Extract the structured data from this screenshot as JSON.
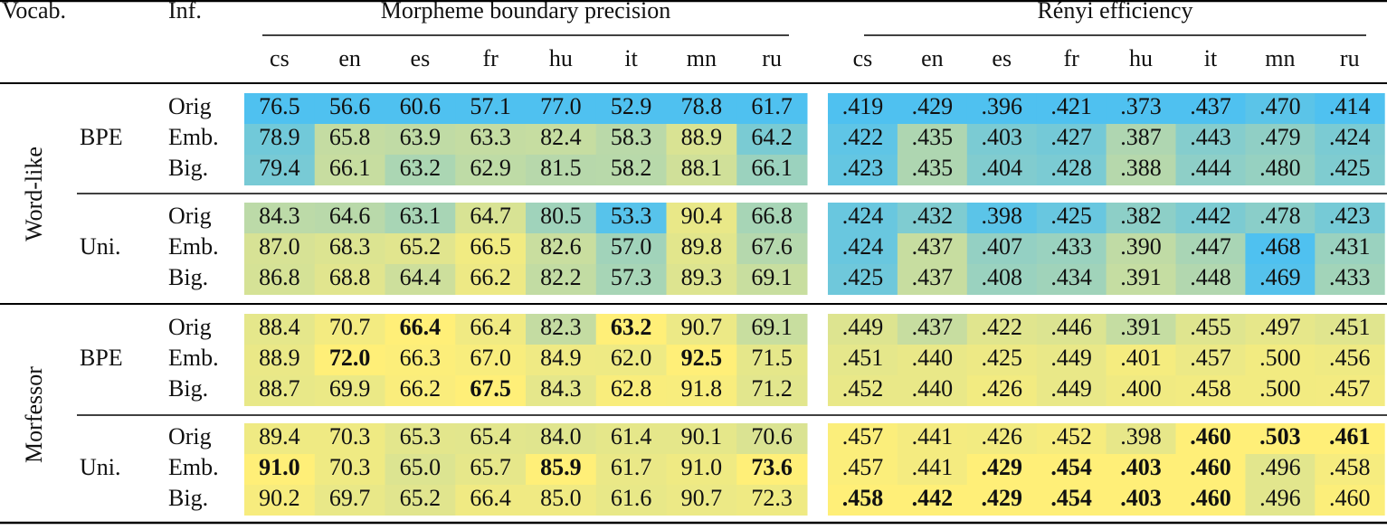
{
  "header": {
    "vocab": "Vocab.",
    "inf": "Inf.",
    "groups": [
      "Morpheme boundary precision",
      "Rényi efficiency"
    ],
    "languages": [
      "cs",
      "en",
      "es",
      "fr",
      "hu",
      "it",
      "mn",
      "ru"
    ]
  },
  "sections": [
    {
      "name": "Word-like",
      "groups": [
        {
          "vocab": "BPE",
          "rows": [
            {
              "inf": "Orig",
              "mbp": [
                "76.5",
                "56.6",
                "60.6",
                "57.1",
                "77.0",
                "52.9",
                "78.8",
                "61.7"
              ],
              "renyi": [
                ".419",
                ".429",
                ".396",
                ".421",
                ".373",
                ".437",
                ".470",
                ".414"
              ]
            },
            {
              "inf": "Emb.",
              "mbp": [
                "78.9",
                "65.8",
                "63.9",
                "63.3",
                "82.4",
                "58.3",
                "88.9",
                "64.2"
              ],
              "renyi": [
                ".422",
                ".435",
                ".403",
                ".427",
                ".387",
                ".443",
                ".479",
                ".424"
              ]
            },
            {
              "inf": "Big.",
              "mbp": [
                "79.4",
                "66.1",
                "63.2",
                "62.9",
                "81.5",
                "58.2",
                "88.1",
                "66.1"
              ],
              "renyi": [
                ".423",
                ".435",
                ".404",
                ".428",
                ".388",
                ".444",
                ".480",
                ".425"
              ]
            }
          ]
        },
        {
          "vocab": "Uni.",
          "rows": [
            {
              "inf": "Orig",
              "mbp": [
                "84.3",
                "64.6",
                "63.1",
                "64.7",
                "80.5",
                "53.3",
                "90.4",
                "66.8"
              ],
              "renyi": [
                ".424",
                ".432",
                ".398",
                ".425",
                ".382",
                ".442",
                ".478",
                ".423"
              ]
            },
            {
              "inf": "Emb.",
              "mbp": [
                "87.0",
                "68.3",
                "65.2",
                "66.5",
                "82.6",
                "57.0",
                "89.8",
                "67.6"
              ],
              "renyi": [
                ".424",
                ".437",
                ".407",
                ".433",
                ".390",
                ".447",
                ".468",
                ".431"
              ]
            },
            {
              "inf": "Big.",
              "mbp": [
                "86.8",
                "68.8",
                "64.4",
                "66.2",
                "82.2",
                "57.3",
                "89.3",
                "69.1"
              ],
              "renyi": [
                ".425",
                ".437",
                ".408",
                ".434",
                ".391",
                ".448",
                ".469",
                ".433"
              ]
            }
          ]
        }
      ]
    },
    {
      "name": "Morfessor",
      "groups": [
        {
          "vocab": "BPE",
          "rows": [
            {
              "inf": "Orig",
              "mbp": [
                "88.4",
                "70.7",
                "66.4",
                "66.4",
                "82.3",
                "63.2",
                "90.7",
                "69.1"
              ],
              "renyi": [
                ".449",
                ".437",
                ".422",
                ".446",
                ".391",
                ".455",
                ".497",
                ".451"
              ]
            },
            {
              "inf": "Emb.",
              "mbp": [
                "88.9",
                "72.0",
                "66.3",
                "67.0",
                "84.9",
                "62.0",
                "92.5",
                "71.5"
              ],
              "renyi": [
                ".451",
                ".440",
                ".425",
                ".449",
                ".401",
                ".457",
                ".500",
                ".456"
              ]
            },
            {
              "inf": "Big.",
              "mbp": [
                "88.7",
                "69.9",
                "66.2",
                "67.5",
                "84.3",
                "62.8",
                "91.8",
                "71.2"
              ],
              "renyi": [
                ".452",
                ".440",
                ".426",
                ".449",
                ".400",
                ".458",
                ".500",
                ".457"
              ]
            }
          ]
        },
        {
          "vocab": "Uni.",
          "rows": [
            {
              "inf": "Orig",
              "mbp": [
                "89.4",
                "70.3",
                "65.3",
                "65.4",
                "84.0",
                "61.4",
                "90.1",
                "70.6"
              ],
              "renyi": [
                ".457",
                ".441",
                ".426",
                ".452",
                ".398",
                ".460",
                ".503",
                ".461"
              ]
            },
            {
              "inf": "Emb.",
              "mbp": [
                "91.0",
                "70.3",
                "65.0",
                "65.7",
                "85.9",
                "61.7",
                "91.0",
                "73.6"
              ],
              "renyi": [
                ".457",
                ".441",
                ".429",
                ".454",
                ".403",
                ".460",
                ".496",
                ".458"
              ]
            },
            {
              "inf": "Big.",
              "mbp": [
                "90.2",
                "69.7",
                "65.2",
                "66.4",
                "85.0",
                "61.6",
                "90.7",
                "72.3"
              ],
              "renyi": [
                ".458",
                ".442",
                ".429",
                ".454",
                ".403",
                ".460",
                ".496",
                ".460"
              ]
            }
          ]
        }
      ]
    }
  ]
}
